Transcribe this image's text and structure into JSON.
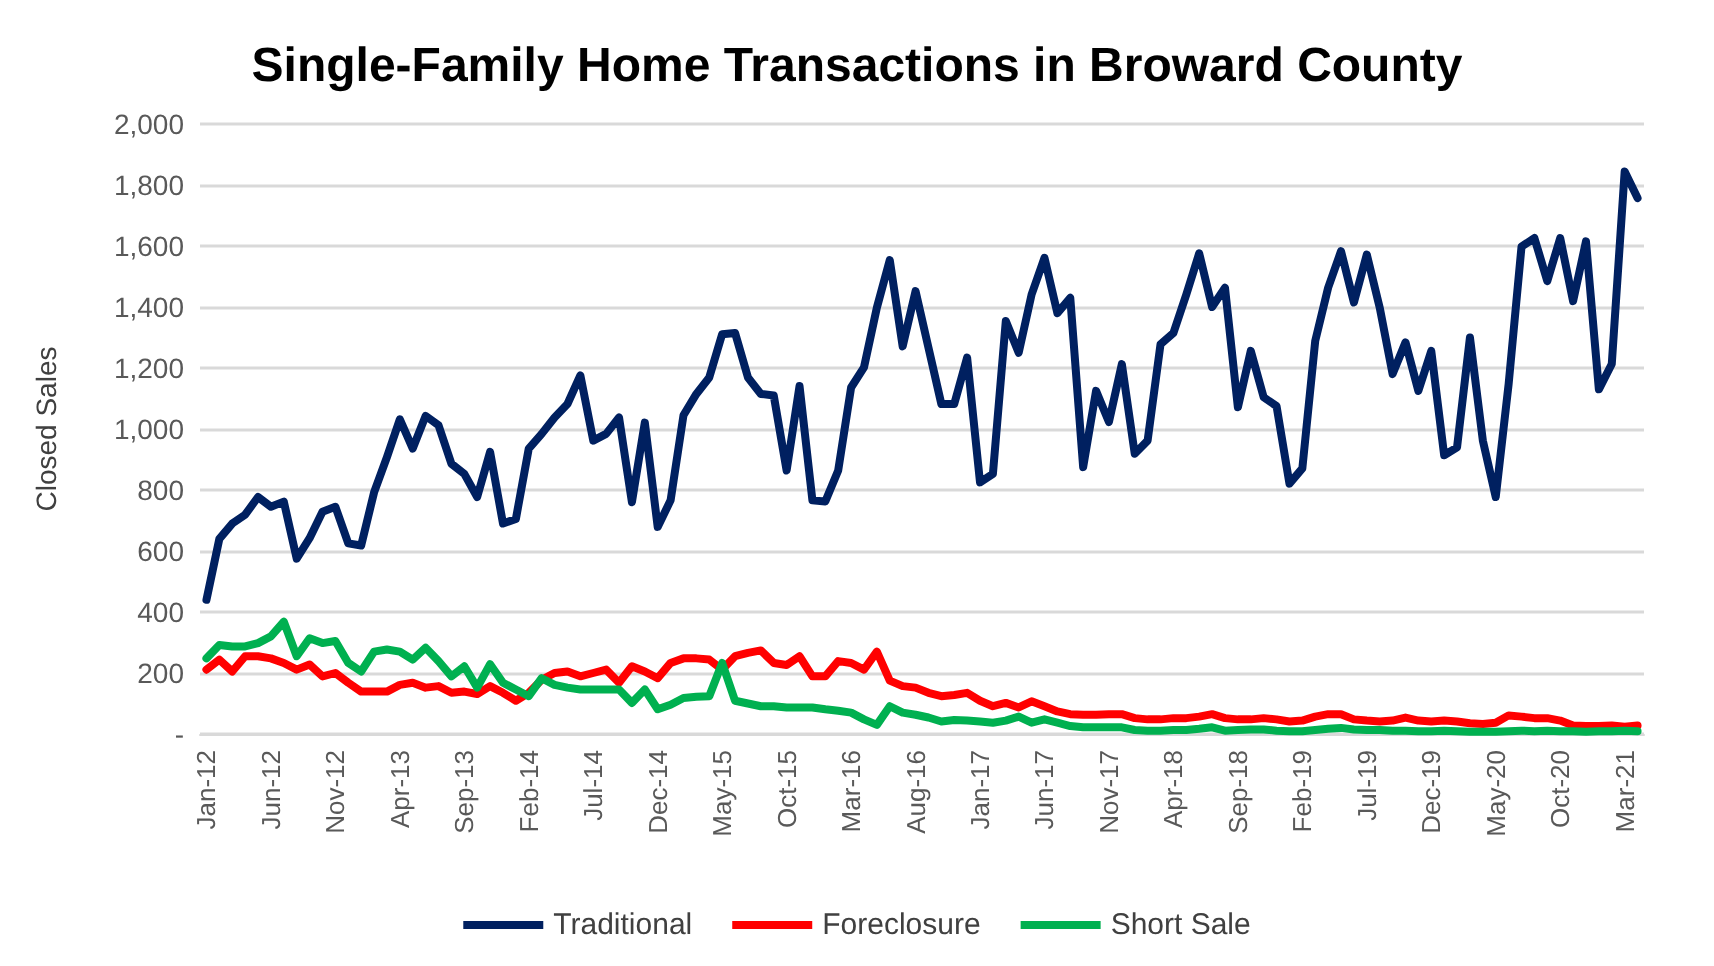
{
  "chart_data": {
    "type": "line",
    "title": "Single-Family Home Transactions in Broward County",
    "ylabel": "Closed Sales",
    "categories": [
      "Jan-12",
      null,
      null,
      null,
      null,
      "Jun-12",
      null,
      null,
      null,
      null,
      "Nov-12",
      null,
      null,
      null,
      null,
      "Apr-13",
      null,
      null,
      null,
      null,
      "Sep-13",
      null,
      null,
      null,
      null,
      "Feb-14",
      null,
      null,
      null,
      null,
      "Jul-14",
      null,
      null,
      null,
      null,
      "Dec-14",
      null,
      null,
      null,
      null,
      "May-15",
      null,
      null,
      null,
      null,
      "Oct-15",
      null,
      null,
      null,
      null,
      "Mar-16",
      null,
      null,
      null,
      null,
      "Aug-16",
      null,
      null,
      null,
      null,
      "Jan-17",
      null,
      null,
      null,
      null,
      "Jun-17",
      null,
      null,
      null,
      null,
      "Nov-17",
      null,
      null,
      null,
      null,
      "Apr-18",
      null,
      null,
      null,
      null,
      "Sep-18",
      null,
      null,
      null,
      null,
      "Feb-19",
      null,
      null,
      null,
      null,
      "Jul-19",
      null,
      null,
      null,
      null,
      "Dec-19",
      null,
      null,
      null,
      null,
      "May-20",
      null,
      null,
      null,
      null,
      "Oct-20",
      null,
      null,
      null,
      null,
      "Mar-21",
      null
    ],
    "series": [
      {
        "name": "Traditional",
        "color": "#002060",
        "values": [
          440,
          640,
          690,
          719,
          777,
          745,
          762,
          575,
          642,
          729,
          745,
          625,
          618,
          792,
          908,
          1032,
          936,
          1043,
          1012,
          886,
          853,
          777,
          925,
          690,
          705,
          936,
          984,
          1038,
          1082,
          1176,
          962,
          984,
          1038,
          760,
          1021,
          679,
          766,
          1045,
          1115,
          1169,
          1311,
          1315,
          1169,
          1115,
          1110,
          864,
          1141,
          766,
          762,
          864,
          1136,
          1202,
          1398,
          1554,
          1271,
          1452,
          1267,
          1082,
          1082,
          1234,
          825,
          853,
          1354,
          1250,
          1441,
          1561,
          1380,
          1430,
          875,
          1125,
          1023,
          1213,
          919,
          962,
          1278,
          1315,
          1441,
          1576,
          1400,
          1463,
          1071,
          1256,
          1104,
          1075,
          821,
          871,
          1289,
          1463,
          1583,
          1415,
          1572,
          1398,
          1180,
          1284,
          1125,
          1256,
          914,
          940,
          1300,
          962,
          777,
          1147,
          1598,
          1626,
          1485,
          1626,
          1419,
          1615,
          1130,
          1213,
          1844,
          1757
        ]
      },
      {
        "name": "Foreclosure",
        "color": "#ff0000",
        "values": [
          211,
          244,
          205,
          255,
          255,
          248,
          233,
          211,
          228,
          189,
          200,
          168,
          139,
          139,
          139,
          161,
          168,
          152,
          157,
          135,
          139,
          131,
          157,
          135,
          109,
          135,
          178,
          200,
          205,
          189,
          200,
          211,
          168,
          222,
          205,
          183,
          233,
          248,
          248,
          244,
          211,
          255,
          266,
          274,
          233,
          226,
          255,
          189,
          189,
          239,
          233,
          211,
          270,
          175,
          157,
          152,
          135,
          124,
          128,
          135,
          109,
          91,
          102,
          87,
          107,
          91,
          74,
          65,
          63,
          63,
          65,
          65,
          52,
          48,
          48,
          52,
          52,
          57,
          65,
          52,
          48,
          48,
          52,
          48,
          41,
          44,
          57,
          65,
          65,
          48,
          44,
          41,
          44,
          54,
          44,
          41,
          44,
          41,
          35,
          33,
          37,
          61,
          57,
          52,
          52,
          44,
          28,
          26,
          26,
          28,
          24,
          28
        ]
      },
      {
        "name": "Short Sale",
        "color": "#00b050",
        "values": [
          248,
          292,
          287,
          287,
          298,
          320,
          368,
          255,
          314,
          298,
          305,
          233,
          205,
          270,
          277,
          270,
          244,
          283,
          239,
          189,
          222,
          152,
          229,
          168,
          146,
          124,
          183,
          161,
          152,
          146,
          146,
          146,
          146,
          102,
          146,
          81,
          96,
          118,
          122,
          124,
          233,
          109,
          100,
          91,
          91,
          87,
          87,
          87,
          81,
          76,
          70,
          48,
          30,
          91,
          70,
          63,
          54,
          41,
          46,
          44,
          41,
          37,
          44,
          57,
          37,
          48,
          37,
          26,
          22,
          22,
          22,
          22,
          13,
          11,
          11,
          13,
          13,
          17,
          22,
          11,
          13,
          15,
          15,
          11,
          9,
          9,
          13,
          17,
          20,
          15,
          13,
          13,
          11,
          11,
          9,
          9,
          11,
          9,
          7,
          7,
          7,
          9,
          11,
          9,
          11,
          9,
          9,
          7,
          9,
          9,
          11,
          9
        ]
      }
    ],
    "ylim": [
      0,
      2000
    ],
    "yticks": [
      {
        "value": 0,
        "label": "-"
      },
      {
        "value": 200,
        "label": "200"
      },
      {
        "value": 400,
        "label": "400"
      },
      {
        "value": 600,
        "label": "600"
      },
      {
        "value": 800,
        "label": "800"
      },
      {
        "value": 1000,
        "label": "1,000"
      },
      {
        "value": 1200,
        "label": "1,200"
      },
      {
        "value": 1400,
        "label": "1,400"
      },
      {
        "value": 1600,
        "label": "1,600"
      },
      {
        "value": 1800,
        "label": "1,800"
      },
      {
        "value": 2000,
        "label": "2,000"
      }
    ],
    "grid": "y",
    "legend": "bottom",
    "marker": "none",
    "line_style": "solid"
  }
}
